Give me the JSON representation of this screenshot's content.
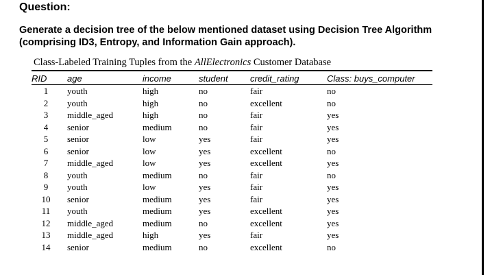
{
  "heading": "Question:",
  "question": "Generate a decision tree of the below mentioned dataset using Decision Tree Algorithm (comprising ID3, Entropy, and Information Gain approach).",
  "caption": {
    "prefix": "Class-Labeled Training Tuples from the ",
    "emph": "AllElectronics",
    "suffix": " Customer Database"
  },
  "columns": [
    "RID",
    "age",
    "income",
    "student",
    "credit_rating",
    "Class: buys_computer"
  ],
  "rows": [
    [
      "1",
      "youth",
      "high",
      "no",
      "fair",
      "no"
    ],
    [
      "2",
      "youth",
      "high",
      "no",
      "excellent",
      "no"
    ],
    [
      "3",
      "middle_aged",
      "high",
      "no",
      "fair",
      "yes"
    ],
    [
      "4",
      "senior",
      "medium",
      "no",
      "fair",
      "yes"
    ],
    [
      "5",
      "senior",
      "low",
      "yes",
      "fair",
      "yes"
    ],
    [
      "6",
      "senior",
      "low",
      "yes",
      "excellent",
      "no"
    ],
    [
      "7",
      "middle_aged",
      "low",
      "yes",
      "excellent",
      "yes"
    ],
    [
      "8",
      "youth",
      "medium",
      "no",
      "fair",
      "no"
    ],
    [
      "9",
      "youth",
      "low",
      "yes",
      "fair",
      "yes"
    ],
    [
      "10",
      "senior",
      "medium",
      "yes",
      "fair",
      "yes"
    ],
    [
      "11",
      "youth",
      "medium",
      "yes",
      "excellent",
      "yes"
    ],
    [
      "12",
      "middle_aged",
      "medium",
      "no",
      "excellent",
      "yes"
    ],
    [
      "13",
      "middle_aged",
      "high",
      "yes",
      "fair",
      "yes"
    ],
    [
      "14",
      "senior",
      "medium",
      "no",
      "excellent",
      "no"
    ]
  ]
}
